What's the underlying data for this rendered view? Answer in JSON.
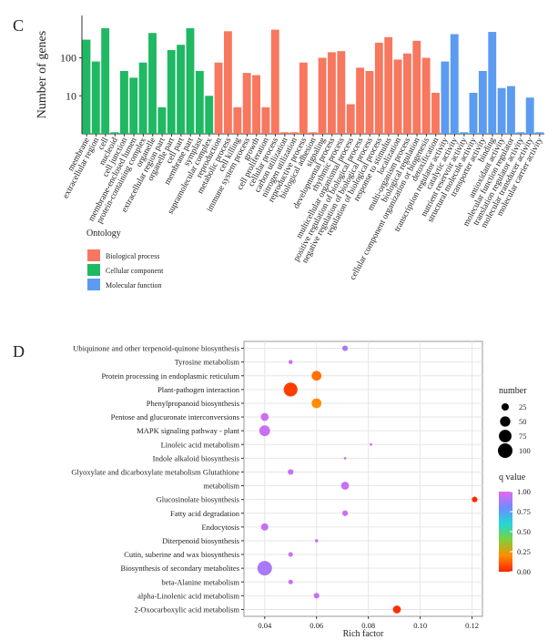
{
  "chart_data": [
    {
      "type": "bar",
      "panel_label": "C",
      "y_label": "Number of genes",
      "log_scale": true,
      "ylim": [
        1,
        1300
      ],
      "yticks": [
        10,
        100
      ],
      "legend_title": "Ontology",
      "categories": [
        "membrane",
        "extracellular region",
        "cell",
        "nucleoid",
        "cell junction",
        "membrane-enclosed lumen",
        "protein-containing complex",
        "organelle",
        "extracellular region part",
        "organelle part",
        "cell part",
        "membrane part",
        "symplast",
        "supramolecular complex",
        "reproduction",
        "metabolic process",
        "cell killing",
        "immune system process",
        "growth",
        "cell proliferation",
        "cellular process",
        "carbon utilization",
        "nitrogen utilization",
        "reproductive process",
        "biological adhesion",
        "signaling",
        "developmental process",
        "rhythmic process",
        "multicellular organismal process",
        "positive regulation of biological process",
        "negative regulation of biological process",
        "regulation of biological process",
        "response to stimulus",
        "localization",
        "multi-organism process",
        "biological regulation",
        "cellular component organization or biogenesis",
        "detoxification",
        "transcription regulator activity",
        "catalytic activity",
        "nutrient reservoir activity",
        "structural molecule activity",
        "transporter activity",
        "binding",
        "antioxidant activity",
        "molecular function regulator",
        "translation regulator activity",
        "molecular transducer activity",
        "molecular carrier activity"
      ],
      "series": [
        {
          "name": "Biological process",
          "color": "#f8775f",
          "values": [
            null,
            null,
            null,
            null,
            null,
            null,
            null,
            null,
            null,
            null,
            null,
            null,
            null,
            null,
            75,
            500,
            5,
            40,
            35,
            5,
            550,
            1.1,
            1.1,
            75,
            1.1,
            100,
            140,
            150,
            6,
            55,
            45,
            250,
            350,
            90,
            130,
            280,
            100,
            12,
            null,
            null,
            null,
            null,
            null,
            null,
            null,
            null,
            null,
            null,
            null
          ]
        },
        {
          "name": "Cellular component",
          "color": "#1fb863",
          "values": [
            300,
            80,
            600,
            1.1,
            45,
            30,
            75,
            450,
            5,
            160,
            220,
            600,
            45,
            10,
            null,
            null,
            null,
            null,
            null,
            null,
            null,
            null,
            null,
            null,
            null,
            null,
            null,
            null,
            null,
            null,
            null,
            null,
            null,
            null,
            null,
            null,
            null,
            null,
            null,
            null,
            null,
            null,
            null,
            null,
            null,
            null,
            null,
            null,
            null
          ]
        },
        {
          "name": "Molecular function",
          "color": "#5b9cf0",
          "values": [
            null,
            null,
            null,
            null,
            null,
            null,
            null,
            null,
            null,
            null,
            null,
            null,
            null,
            null,
            null,
            null,
            null,
            null,
            null,
            null,
            null,
            null,
            null,
            null,
            null,
            null,
            null,
            null,
            null,
            null,
            null,
            null,
            null,
            null,
            null,
            null,
            null,
            null,
            80,
            420,
            1.1,
            12,
            45,
            480,
            16,
            18,
            1.1,
            9,
            1.1
          ]
        }
      ]
    },
    {
      "type": "bubble",
      "panel_label": "D",
      "x_label": "Rich factor",
      "xlim": [
        0.032,
        0.124
      ],
      "xticks": [
        0.04,
        0.06,
        0.08,
        {
          "value": 0.1,
          "label": "0.10"
        },
        0.12
      ],
      "categories": [
        "Ubiquinone and other terpenoid-quinone biosynthesis",
        "Tyrosine metabolism",
        "Protein processing in endoplasmic reticulum",
        "Plant-pathogen interaction",
        "Phenylpropanoid biosynthesis",
        "Pentose and glucuronate interconversions",
        "MAPK signaling pathway - plant",
        "Linoleic acid metabolism",
        "Indole alkaloid biosynthesis",
        "Glyoxylate and dicarboxylate metabolism Glutathione",
        "metabolism",
        "Glucosinolate biosynthesis",
        "Fatty acid degradation",
        "Endocytosis",
        "Diterpenoid biosynthesis",
        "Cutin, suberine and wax biosynthesis",
        "Biosynthesis of secondary metabolites",
        "beta-Alanine metabolism",
        "alpha-Linolenic acid metabolism",
        "2-Oxocarboxylic acid metabolism"
      ],
      "x": [
        0.071,
        0.05,
        0.06,
        0.05,
        0.06,
        0.04,
        0.04,
        0.081,
        0.071,
        0.05,
        0.071,
        0.121,
        0.071,
        0.04,
        0.06,
        0.05,
        0.04,
        0.05,
        0.06,
        0.091
      ],
      "size": [
        15,
        8,
        45,
        90,
        45,
        30,
        55,
        3,
        3,
        15,
        30,
        15,
        15,
        25,
        5,
        10,
        100,
        10,
        15,
        30
      ],
      "q_value": [
        0.9,
        0.95,
        0.15,
        0.05,
        0.2,
        0.95,
        0.95,
        0.95,
        0.95,
        0.95,
        0.95,
        0.02,
        0.95,
        0.95,
        0.95,
        0.95,
        0.9,
        0.95,
        0.95,
        0.02
      ],
      "size_legend_title": "number",
      "size_legend": [
        25,
        50,
        75,
        100
      ],
      "color_legend_title": "q value",
      "color_ticks": [
        {
          "value": 0,
          "label": "0.00"
        },
        {
          "value": 0.25,
          "label": "0.25"
        },
        {
          "value": 0.5,
          "label": "0.50"
        },
        {
          "value": 0.75,
          "label": "0.75"
        },
        {
          "value": 1,
          "label": "1.00"
        }
      ],
      "color_scale": [
        "#ff2200",
        "#ff8c00",
        "#7fd13b",
        "#20d8d8",
        "#6f8cff",
        "#e566f0"
      ],
      "grid": true
    }
  ]
}
